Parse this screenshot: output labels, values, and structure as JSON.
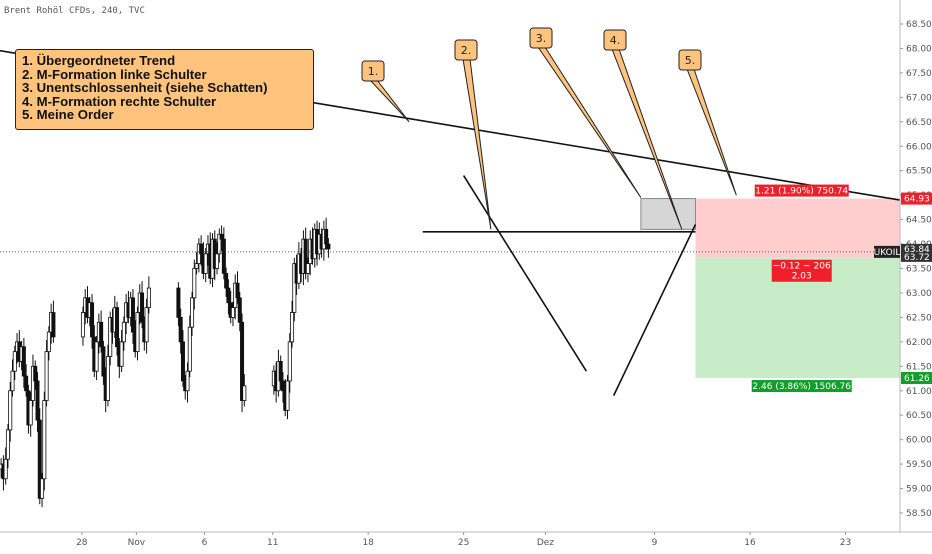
{
  "header": {
    "title": "Brent Rohöl CFDs, 240, TVC"
  },
  "annotation_box": {
    "lines": [
      "1. Übergeordneter Trend",
      "2. M-Formation linke Schulter",
      "3. Unentschlossenheit (siehe Schatten)",
      "4. M-Formation rechte Schulter",
      "5. Meine Order"
    ]
  },
  "colors": {
    "candle": "#111111",
    "profit_zone": "#c8ebc8",
    "loss_zone": "#ffcdcd",
    "badge_red": "#f0202a",
    "badge_green": "#10a02a",
    "callout_fill": "#ffc37d",
    "shadow_box": "#c8c8c8"
  },
  "chart_data": {
    "type": "candlestick",
    "title": "Brent Rohöl CFDs, 240, TVC",
    "ylim": [
      58.3,
      68.8
    ],
    "y_ticks": [
      "58.50",
      "59.00",
      "59.50",
      "60.00",
      "60.50",
      "61.00",
      "61.50",
      "62.00",
      "62.50",
      "63.00",
      "63.50",
      "64.00",
      "64.50",
      "65.00",
      "65.50",
      "66.00",
      "66.50",
      "67.00",
      "67.50",
      "68.00",
      "68.50"
    ],
    "x_ticks": [
      {
        "label": "28",
        "date": "2019-10-28"
      },
      {
        "label": "Nov",
        "date": "2019-11-01"
      },
      {
        "label": "6",
        "date": "2019-11-06"
      },
      {
        "label": "11",
        "date": "2019-11-11"
      },
      {
        "label": "18",
        "date": "2019-11-18"
      },
      {
        "label": "25",
        "date": "2019-11-25"
      },
      {
        "label": "Dez",
        "date": "2019-12-01"
      },
      {
        "label": "9",
        "date": "2019-12-09"
      },
      {
        "label": "16",
        "date": "2019-12-16"
      },
      {
        "label": "23",
        "date": "2019-12-23"
      }
    ],
    "x_range": [
      "2019-10-22",
      "2019-12-27"
    ],
    "closes": [
      59.5,
      59.2,
      59.6,
      60.2,
      61.0,
      61.4,
      61.8,
      62.0,
      61.6,
      61.9,
      61.3,
      61.0,
      60.3,
      60.8,
      61.5,
      61.2,
      60.4,
      58.8,
      59.2,
      60.8,
      61.8,
      62.2,
      62.6,
      62.1,
      62.6,
      62.9,
      62.5,
      62.8,
      62.1,
      61.4,
      62.0,
      62.4,
      61.9,
      61.3,
      60.8,
      61.7,
      62.5,
      62.2,
      62.7,
      61.9,
      61.5,
      62.0,
      62.4,
      62.8,
      62.5,
      62.9,
      62.2,
      61.8,
      62.6,
      63.0,
      62.4,
      62.0,
      62.7,
      63.1,
      62.5,
      62.0,
      61.2,
      61.0,
      61.4,
      62.3,
      62.9,
      63.5,
      63.6,
      64.0,
      63.8,
      63.4,
      63.8,
      64.0,
      63.3,
      64.1,
      63.5,
      63.8,
      64.2,
      64.1,
      63.4,
      63.1,
      62.8,
      62.5,
      62.7,
      63.2,
      62.9,
      62.4,
      60.8,
      61.1,
      61.4,
      61.0,
      61.6,
      61.2,
      61.0,
      60.6,
      61.2,
      62.0,
      62.6,
      63.6,
      63.2,
      63.8,
      63.4,
      64.1,
      63.4,
      63.6,
      64.1,
      63.7,
      64.3,
      63.8,
      64.2,
      63.9,
      64.3,
      64.0,
      63.9
    ],
    "current_price": {
      "symbol": "UKOIL",
      "value": "63.84",
      "time": "63.72"
    },
    "price_badges": {
      "upper": "64.93",
      "lower": "61.26"
    },
    "trendlines": [
      {
        "name": "Übergeordneter Trend",
        "from": {
          "date": "2019-10-21",
          "price": 68.0
        },
        "to": {
          "date": "2019-12-27",
          "price": 64.9
        }
      },
      {
        "name": "Neckline",
        "from": {
          "date": "2019-11-22",
          "price": 64.25
        },
        "to": {
          "date": "2019-12-12",
          "price": 64.25
        }
      },
      {
        "name": "Abwärtslinie",
        "from": {
          "date": "2019-11-25",
          "price": 65.4
        },
        "to": {
          "date": "2019-12-04",
          "price": 61.4
        }
      },
      {
        "name": "Aufwärtslinie",
        "from": {
          "date": "2019-12-06",
          "price": 60.9
        },
        "to": {
          "date": "2019-12-12",
          "price": 64.4
        }
      }
    ],
    "shadow_zone": {
      "from": "2019-12-08",
      "to": "2019-12-12",
      "low": 64.3,
      "high": 64.93
    },
    "callouts": [
      {
        "label": "1.",
        "tip": {
          "date": "2019-11-21",
          "price": 66.5
        }
      },
      {
        "label": "2.",
        "tip": {
          "date": "2019-11-27",
          "price": 64.3
        }
      },
      {
        "label": "3.",
        "tip": {
          "date": "2019-12-08",
          "price": 64.95
        }
      },
      {
        "label": "4.",
        "tip": {
          "date": "2019-12-11",
          "price": 64.3
        }
      },
      {
        "label": "5.",
        "tip": {
          "date": "2019-12-15",
          "price": 65.0
        }
      }
    ],
    "position": {
      "entry": 63.72,
      "target": 61.26,
      "stop": 64.93,
      "from": "2019-12-12",
      "to": "2019-12-27",
      "stop_label": "1.21 (1.90%) 750.74",
      "entry_label_1": "−0.12 ∼ 206",
      "entry_label_2": "2.03",
      "target_label": "2.46 (3.86%) 1506.76"
    }
  }
}
